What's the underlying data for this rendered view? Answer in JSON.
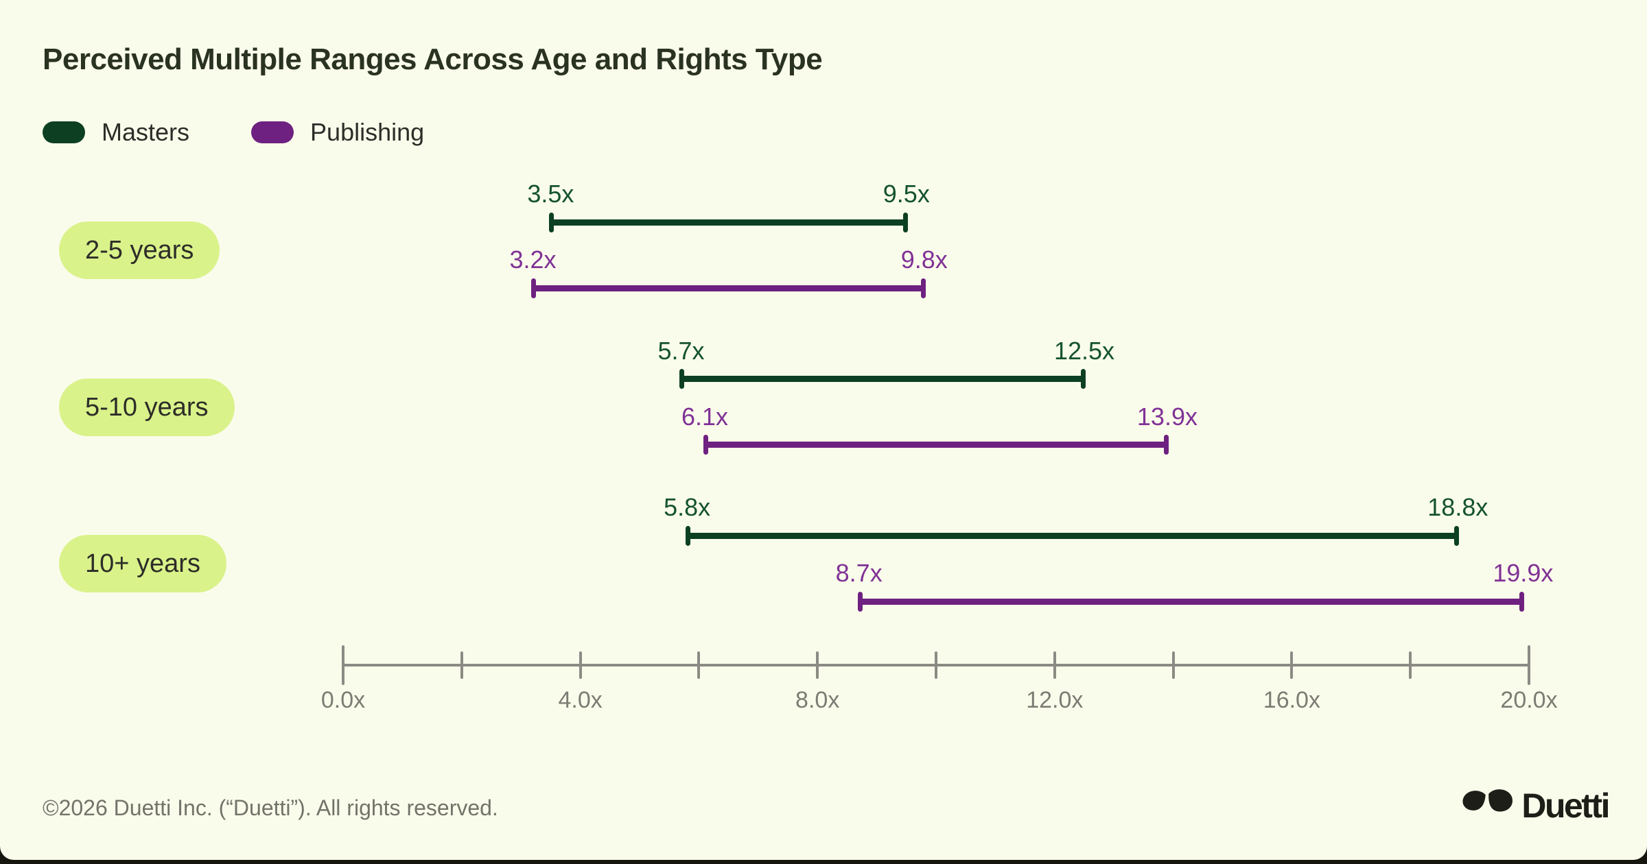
{
  "page": {
    "title": "Perceived Multiple Ranges Across Age and Rights Type"
  },
  "legend": [
    {
      "label": "Masters",
      "color": "#0d4023"
    },
    {
      "label": "Publishing",
      "color": "#6e2180"
    }
  ],
  "chart_data": {
    "type": "range-bar",
    "title": "Perceived Multiple Ranges Across Age and Rights Type",
    "categories": [
      "2-5 years",
      "5-10 years",
      "10+ years"
    ],
    "series": [
      {
        "name": "Masters",
        "color": "#0d4023",
        "label_color": "#14532d",
        "ranges": [
          [
            3.5,
            9.5
          ],
          [
            5.7,
            12.5
          ],
          [
            5.8,
            18.8
          ]
        ]
      },
      {
        "name": "Publishing",
        "color": "#6e2180",
        "label_color": "#803296",
        "ranges": [
          [
            3.2,
            9.8
          ],
          [
            6.1,
            13.9
          ],
          [
            8.7,
            19.9
          ]
        ]
      }
    ],
    "value_suffix": "x",
    "axis": {
      "min": 0,
      "max": 20,
      "tick_step": 2,
      "label_step": 4,
      "tick_labels": [
        "0.0x",
        "4.0x",
        "8.0x",
        "12.0x",
        "16.0x",
        "20.0x"
      ]
    },
    "legend_position": "top-left",
    "grid": false
  },
  "footer": {
    "copyright": "©2026 Duetti Inc. (“Duetti”). All rights reserved.",
    "brand": "Duetti"
  },
  "colors": {
    "background": "#fafceb",
    "page_behind": "#16160f",
    "title": "#2a3221",
    "text": "#2d2d28",
    "pill_bg": "#d9f28a",
    "axis_line": "#8b8b84",
    "axis_label": "#7c7c74",
    "footer_text": "#73736a",
    "logo": "#1e1e18"
  }
}
